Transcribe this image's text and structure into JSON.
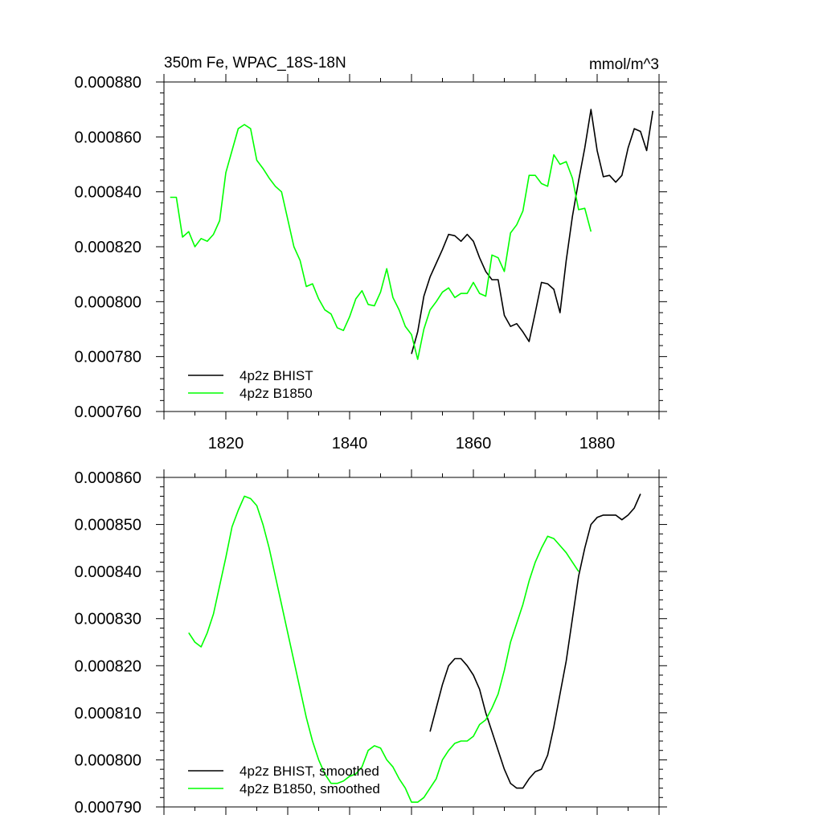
{
  "chart_data": [
    {
      "type": "line",
      "title": "350m Fe, WPAC_18S-18N",
      "units": "mmol/m^3",
      "xlim": [
        1810,
        1890
      ],
      "ylim": [
        0.00076,
        0.00088
      ],
      "yticks": [
        0.00076,
        0.00078,
        0.0008,
        0.00082,
        0.00084,
        0.00086,
        0.00088
      ],
      "ytick_labels": [
        "0.000760",
        "0.000780",
        "0.000800",
        "0.000820",
        "0.000840",
        "0.000860",
        "0.000880"
      ],
      "xticks": [
        1820,
        1840,
        1860,
        1880
      ],
      "xtick_labels": [
        "1820",
        "1840",
        "1860",
        "1880"
      ],
      "legend_position": "bottom-left",
      "series": [
        {
          "name": "4p2z BHIST",
          "color": "#000000",
          "x": [
            1850,
            1851,
            1852,
            1853,
            1854,
            1855,
            1856,
            1857,
            1858,
            1859,
            1860,
            1861,
            1862,
            1863,
            1864,
            1865,
            1866,
            1867,
            1868,
            1869,
            1870,
            1871,
            1872,
            1873,
            1874,
            1875,
            1876,
            1877,
            1878,
            1879,
            1880,
            1881,
            1882,
            1883,
            1884,
            1885,
            1886,
            1887,
            1888,
            1889
          ],
          "y": [
            0.000781,
            0.000789,
            0.000802,
            0.000809,
            0.000814,
            0.000819,
            0.0008245,
            0.000824,
            0.000822,
            0.0008245,
            0.000822,
            0.000816,
            0.000811,
            0.000808,
            0.000808,
            0.000795,
            0.000791,
            0.000792,
            0.000789,
            0.0007855,
            0.000796,
            0.000807,
            0.0008065,
            0.0008045,
            0.000796,
            0.000815,
            0.000831,
            0.000844,
            0.000856,
            0.00087,
            0.000855,
            0.0008455,
            0.000846,
            0.0008435,
            0.000846,
            0.000856,
            0.000863,
            0.000862,
            0.000855,
            0.0008695
          ]
        },
        {
          "name": "4p2z B1850",
          "color": "#00ff00",
          "x": [
            1811,
            1812,
            1813,
            1814,
            1815,
            1816,
            1817,
            1818,
            1819,
            1820,
            1821,
            1822,
            1823,
            1824,
            1825,
            1826,
            1827,
            1828,
            1829,
            1830,
            1831,
            1832,
            1833,
            1834,
            1835,
            1836,
            1837,
            1838,
            1839,
            1840,
            1841,
            1842,
            1843,
            1844,
            1845,
            1846,
            1847,
            1848,
            1849,
            1850,
            1851,
            1852,
            1853,
            1854,
            1855,
            1856,
            1857,
            1858,
            1859,
            1860,
            1861,
            1862,
            1863,
            1864,
            1865,
            1866,
            1867,
            1868,
            1869,
            1870,
            1871,
            1872,
            1873,
            1874,
            1875,
            1876,
            1877,
            1878,
            1879
          ],
          "y": [
            0.000838,
            0.000838,
            0.0008235,
            0.0008255,
            0.00082,
            0.000823,
            0.000822,
            0.0008245,
            0.0008295,
            0.000847,
            0.000855,
            0.000863,
            0.0008645,
            0.000863,
            0.0008515,
            0.0008485,
            0.000845,
            0.000842,
            0.00084,
            0.00083,
            0.00082,
            0.000815,
            0.0008055,
            0.0008065,
            0.000801,
            0.000797,
            0.0007955,
            0.0007905,
            0.0007895,
            0.0007945,
            0.000801,
            0.000804,
            0.000799,
            0.0007985,
            0.0008035,
            0.000812,
            0.0008015,
            0.000797,
            0.000791,
            0.000788,
            0.000779,
            0.00079,
            0.000797,
            0.0008,
            0.0008035,
            0.000805,
            0.0008015,
            0.000803,
            0.000803,
            0.000807,
            0.000803,
            0.000802,
            0.000817,
            0.000816,
            0.000811,
            0.000825,
            0.000828,
            0.000833,
            0.000846,
            0.000846,
            0.000843,
            0.000842,
            0.0008535,
            0.00085,
            0.000851,
            0.000845,
            0.0008335,
            0.000834,
            0.0008255
          ]
        }
      ]
    },
    {
      "type": "line",
      "title": "",
      "xlim": [
        1810,
        1890
      ],
      "ylim": [
        0.00079,
        0.00086
      ],
      "yticks": [
        0.00079,
        0.0008,
        0.00081,
        0.00082,
        0.00083,
        0.00084,
        0.00085,
        0.00086
      ],
      "ytick_labels": [
        "0.000790",
        "0.000800",
        "0.000810",
        "0.000820",
        "0.000830",
        "0.000840",
        "0.000850",
        "0.000860"
      ],
      "xticks": [
        1820,
        1840,
        1860,
        1880
      ],
      "xtick_labels": [],
      "legend_position": "bottom-left",
      "series": [
        {
          "name": "4p2z BHIST, smoothed",
          "color": "#000000",
          "x": [
            1853,
            1854,
            1855,
            1856,
            1857,
            1858,
            1859,
            1860,
            1861,
            1862,
            1863,
            1864,
            1865,
            1866,
            1867,
            1868,
            1869,
            1870,
            1871,
            1872,
            1873,
            1874,
            1875,
            1876,
            1877,
            1878,
            1879,
            1880,
            1881,
            1882,
            1883,
            1884,
            1885,
            1886,
            1887
          ],
          "y": [
            0.000806,
            0.000811,
            0.000816,
            0.00082,
            0.0008215,
            0.0008215,
            0.00082,
            0.000818,
            0.000815,
            0.00081,
            0.000806,
            0.000802,
            0.000798,
            0.000795,
            0.000794,
            0.000794,
            0.000796,
            0.0007975,
            0.000798,
            0.000801,
            0.000807,
            0.000814,
            0.000821,
            0.00083,
            0.000839,
            0.000845,
            0.00085,
            0.0008515,
            0.000852,
            0.000852,
            0.000852,
            0.000851,
            0.000852,
            0.0008535,
            0.0008565
          ]
        },
        {
          "name": "4p2z B1850, smoothed",
          "color": "#00ff00",
          "x": [
            1814,
            1815,
            1816,
            1817,
            1818,
            1819,
            1820,
            1821,
            1822,
            1823,
            1824,
            1825,
            1826,
            1827,
            1828,
            1829,
            1830,
            1831,
            1832,
            1833,
            1834,
            1835,
            1836,
            1837,
            1838,
            1839,
            1840,
            1841,
            1842,
            1843,
            1844,
            1845,
            1846,
            1847,
            1848,
            1849,
            1850,
            1851,
            1852,
            1853,
            1854,
            1855,
            1856,
            1857,
            1858,
            1859,
            1860,
            1861,
            1862,
            1863,
            1864,
            1865,
            1866,
            1867,
            1868,
            1869,
            1870,
            1871,
            1872,
            1873,
            1874,
            1875,
            1876,
            1877
          ],
          "y": [
            0.000827,
            0.000825,
            0.000824,
            0.000827,
            0.000831,
            0.000837,
            0.000843,
            0.0008495,
            0.000853,
            0.000856,
            0.0008555,
            0.000854,
            0.00085,
            0.000845,
            0.000839,
            0.000833,
            0.000827,
            0.000821,
            0.000815,
            0.000809,
            0.000804,
            0.0008,
            0.000797,
            0.000795,
            0.000795,
            0.0007955,
            0.0007965,
            0.000797,
            0.0007985,
            0.000802,
            0.000803,
            0.0008025,
            0.0008,
            0.0007985,
            0.000796,
            0.000794,
            0.000791,
            0.000791,
            0.000792,
            0.000794,
            0.000796,
            0.0008,
            0.000802,
            0.0008035,
            0.000804,
            0.000804,
            0.000805,
            0.0008075,
            0.0008085,
            0.000811,
            0.000814,
            0.000819,
            0.000825,
            0.000829,
            0.000833,
            0.000838,
            0.000842,
            0.000845,
            0.0008475,
            0.000847,
            0.0008455,
            0.000844,
            0.000842,
            0.00084
          ]
        }
      ]
    }
  ]
}
